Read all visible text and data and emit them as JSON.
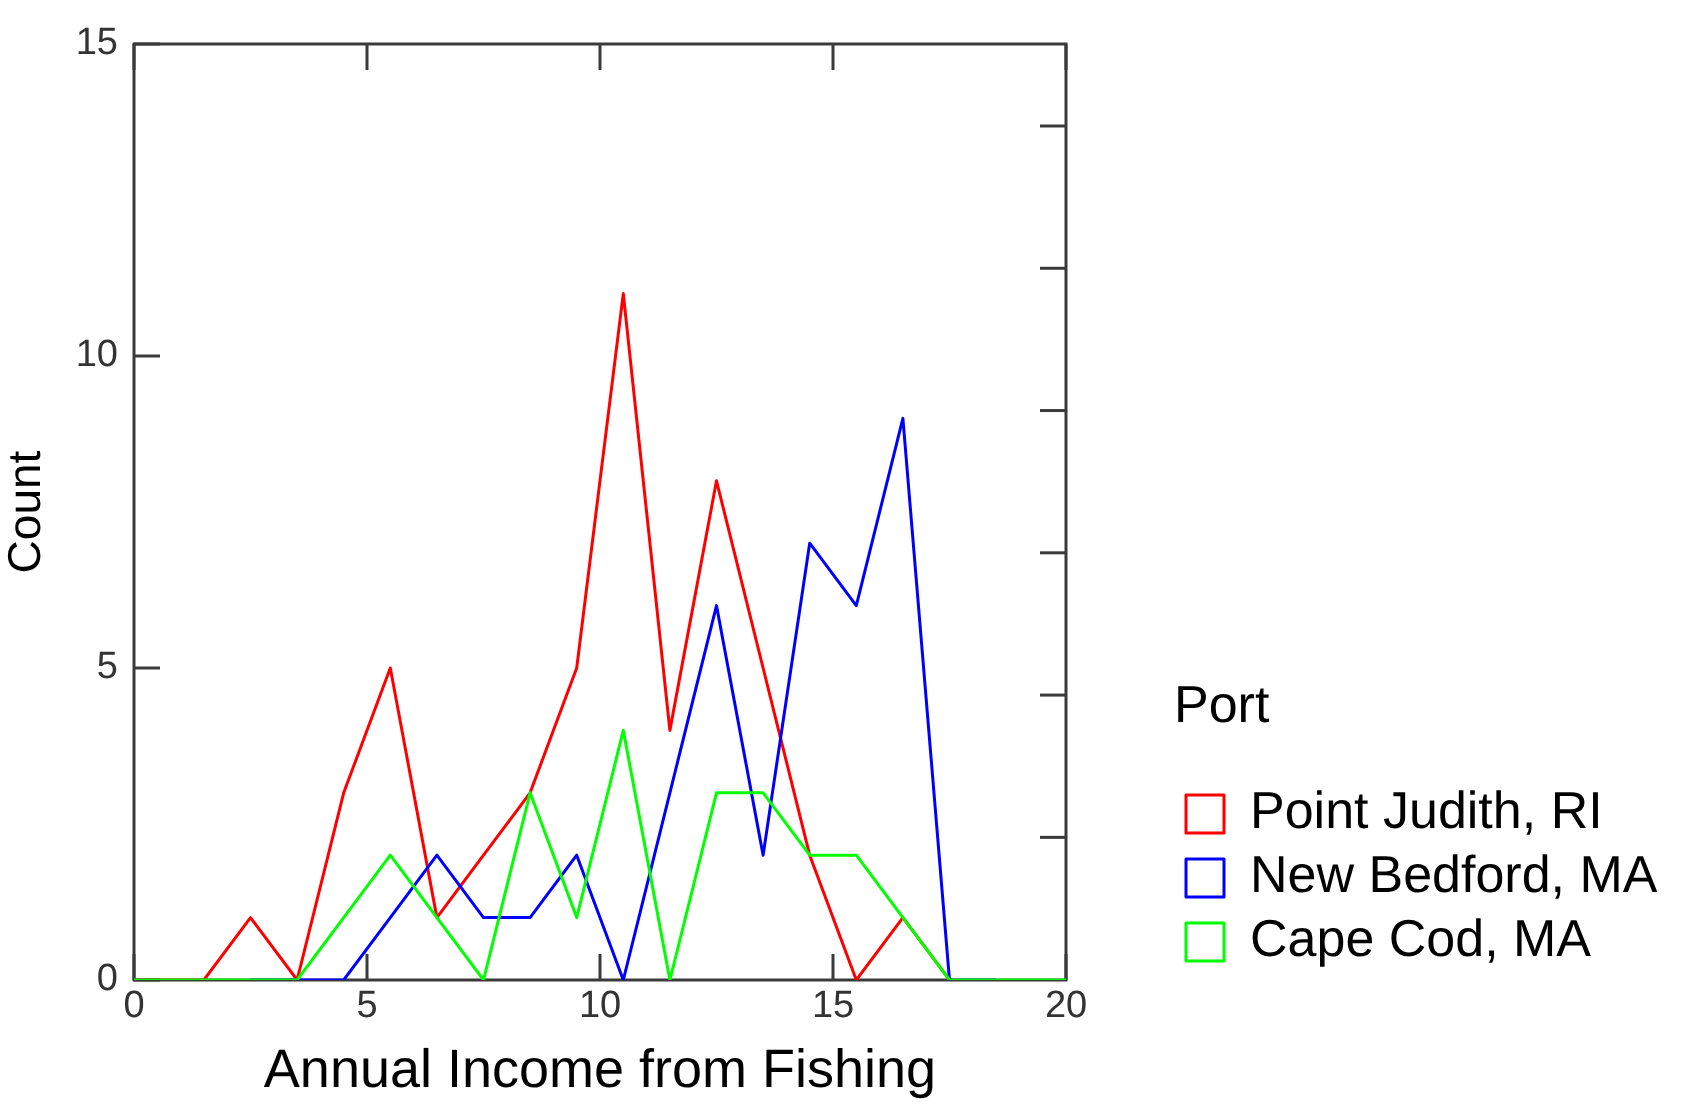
{
  "chart_data": {
    "type": "line",
    "xlabel": "Annual Income from Fishing",
    "ylabel": "Count",
    "legend_title": "Port",
    "x": [
      0,
      0.5,
      1.5,
      2.5,
      3.5,
      4.5,
      5.5,
      6.5,
      7.5,
      8.5,
      9.5,
      10.5,
      11.5,
      12.5,
      13.5,
      14.5,
      15.5,
      16.5,
      17.5,
      18.5,
      19.5,
      20
    ],
    "series": [
      {
        "name": "Point Judith, RI",
        "color": "#ff0000",
        "values": [
          0,
          0,
          0,
          1,
          0,
          3,
          5,
          1,
          2,
          3,
          5,
          11,
          4,
          8,
          5,
          2,
          0,
          1,
          0,
          null,
          null,
          null
        ]
      },
      {
        "name": "New Bedford, MA",
        "color": "#0000ff",
        "values": [
          null,
          null,
          null,
          0,
          0,
          0,
          1,
          2,
          1,
          1,
          2,
          0,
          3,
          6,
          2,
          7,
          6,
          9,
          0,
          0,
          null,
          null
        ]
      },
      {
        "name": "Cape Cod, MA",
        "color": "#00ff00",
        "values": [
          0,
          0,
          0,
          0,
          0,
          1,
          2,
          1,
          0,
          3,
          1,
          4,
          0,
          3,
          3,
          2,
          2,
          1,
          0,
          0,
          0,
          0
        ]
      }
    ],
    "xlim": [
      0,
      20
    ],
    "xticks": [
      0,
      5,
      10,
      15,
      20
    ],
    "ylim": [
      0,
      15
    ],
    "yticks": [
      0,
      5,
      10,
      15
    ],
    "legend": "right"
  }
}
